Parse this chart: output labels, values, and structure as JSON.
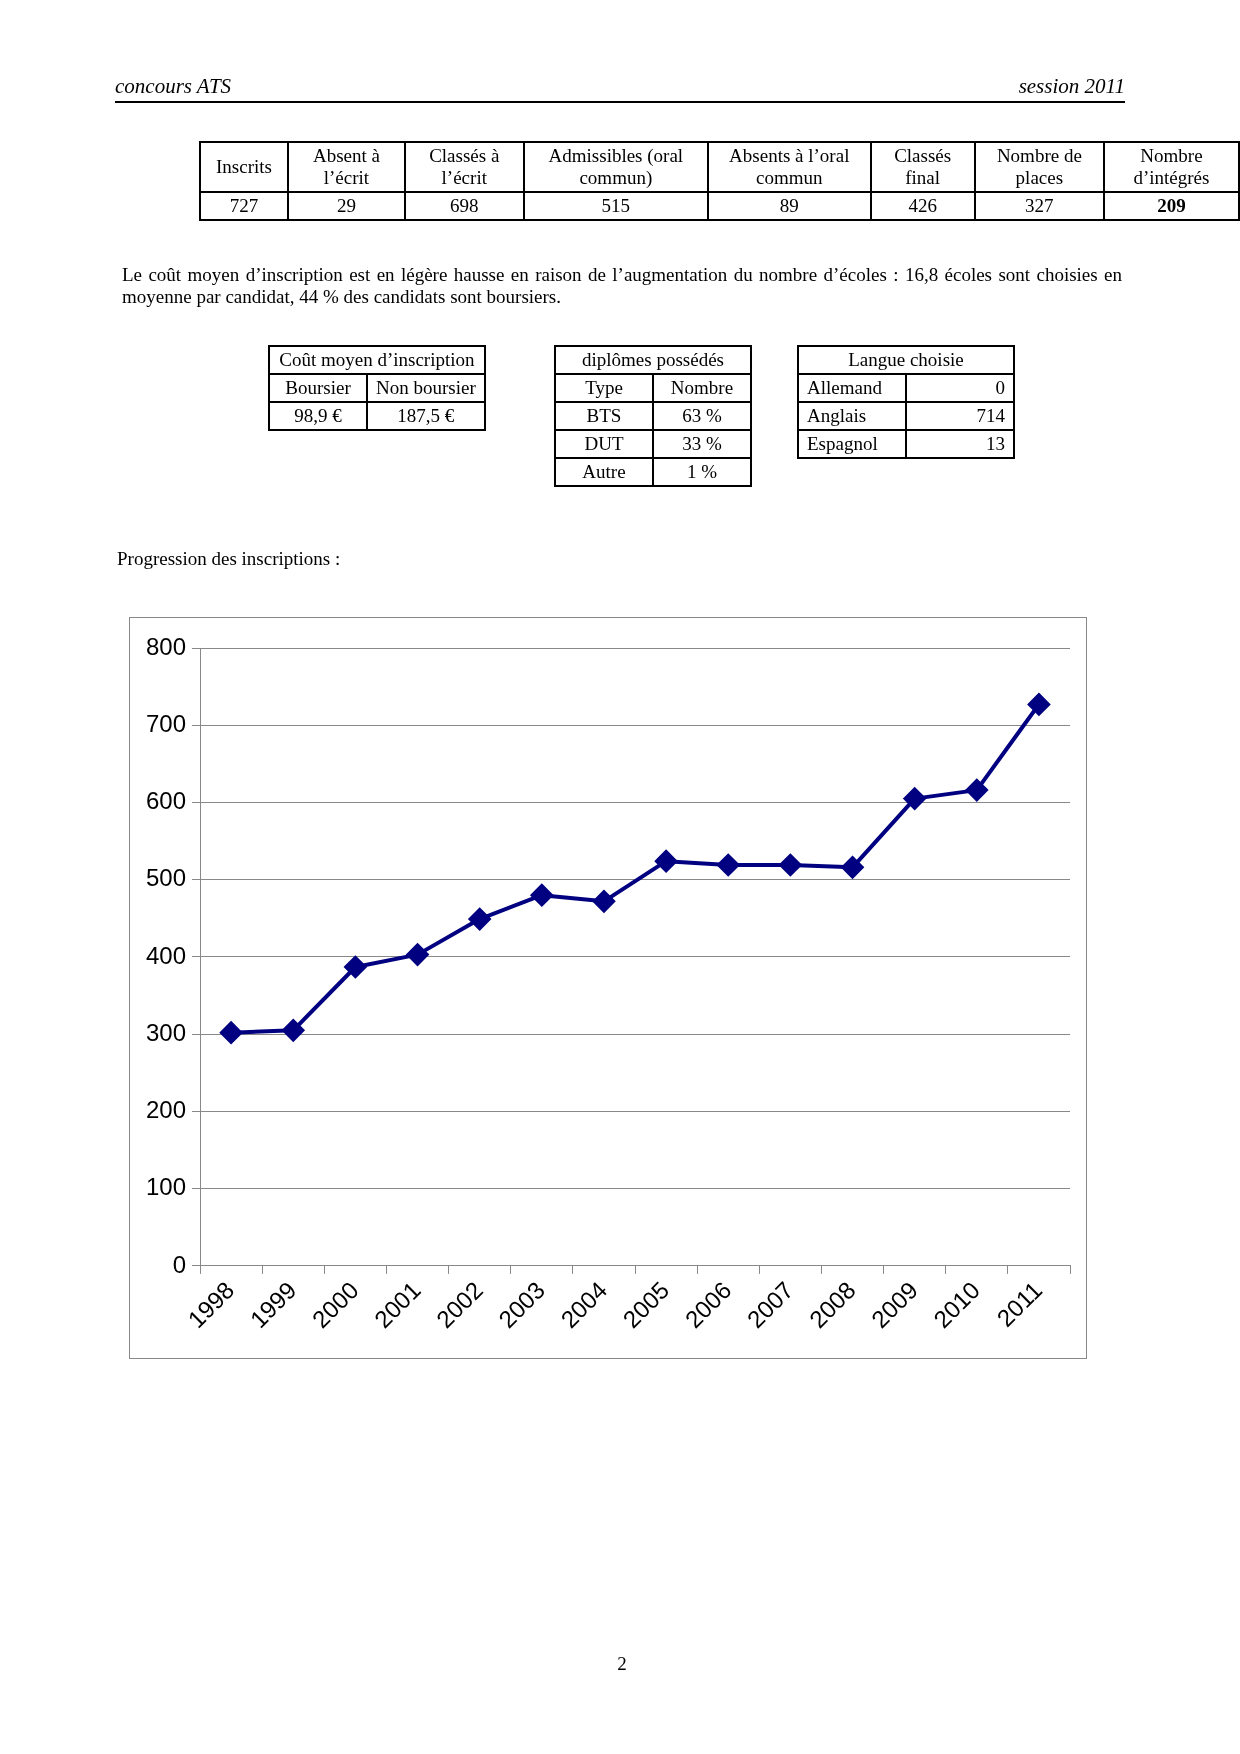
{
  "chart_data": [
    {
      "type": "other",
      "annotations": [
        "concours ATS",
        "session 2011"
      ]
    },
    {
      "type": "other",
      "annotations": [
        "Inscrits",
        "Absent à l’écrit",
        "Classés à l’écrit",
        "Admissibles (oral commun)",
        "Absents à l’oral commun",
        "Classés final",
        "Nombre de places",
        "Nombre d’intégrés",
        "727",
        "29",
        "698",
        "515",
        "89",
        "426",
        "327",
        "209"
      ]
    },
    {
      "type": "other",
      "annotations": [
        "Le coût moyen d’inscription est en légère hausse en raison de l’augmentation du nombre d’écoles : 16,8 écoles sont choisies en moyenne par candidat, 44 % des candidats sont boursiers."
      ]
    },
    {
      "type": "other",
      "title": "Coût moyen d’inscription",
      "annotations": [
        "Boursier",
        "Non boursier",
        "98,9 €",
        "187,5 €"
      ]
    },
    {
      "type": "other",
      "title": "diplômes possédés",
      "annotations": [
        "Type",
        "Nombre",
        "BTS",
        "63 %",
        "DUT",
        "33 %",
        "Autre",
        "1 %"
      ]
    },
    {
      "type": "other",
      "title": "Langue choisie",
      "annotations": [
        "Allemand",
        "0",
        "Anglais",
        "714",
        "Espagnol",
        "13"
      ]
    },
    {
      "type": "line",
      "title": "Progression des inscriptions :",
      "categories": [
        "1998",
        "1999",
        "2000",
        "2001",
        "2002",
        "2003",
        "2004",
        "2005",
        "2006",
        "2007",
        "2008",
        "2009",
        "2010",
        "2011"
      ],
      "series": [
        {
          "color": "#000080",
          "values": [
            302,
            305,
            387,
            403,
            449,
            480,
            472,
            524,
            519,
            519,
            516,
            605,
            616,
            727
          ]
        }
      ],
      "ylim": [
        0,
        800
      ],
      "yticks": [
        0,
        100,
        200,
        300,
        400,
        500,
        600,
        700,
        800
      ],
      "grid": "y",
      "marker": "diamond",
      "annotations": [
        "2"
      ]
    }
  ]
}
